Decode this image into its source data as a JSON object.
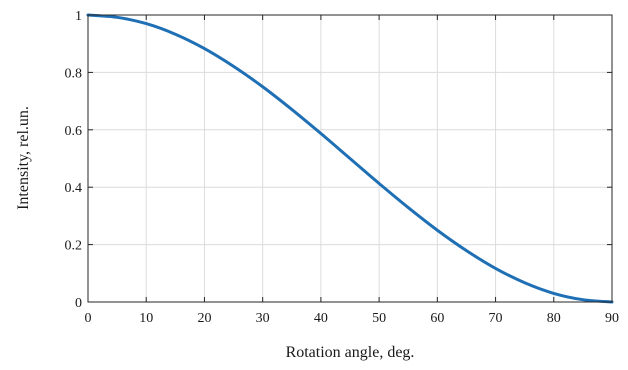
{
  "chart_data": {
    "type": "line",
    "title": "",
    "xlabel": "Rotation angle, deg.",
    "ylabel": "Intensity, rel.un.",
    "xlim": [
      0,
      90
    ],
    "ylim": [
      0,
      1
    ],
    "x_ticks": [
      "0",
      "10",
      "20",
      "30",
      "40",
      "50",
      "60",
      "70",
      "80",
      "90"
    ],
    "y_ticks": [
      "0",
      "0.2",
      "0.4",
      "0.6",
      "0.8",
      "1"
    ],
    "grid": true,
    "series": [
      {
        "color": "#1f6fb5",
        "x": [
          0,
          5,
          10,
          15,
          20,
          25,
          30,
          35,
          40,
          45,
          50,
          55,
          60,
          65,
          70,
          75,
          80,
          85,
          90
        ],
        "y": [
          1.0,
          0.992,
          0.97,
          0.933,
          0.883,
          0.821,
          0.75,
          0.671,
          0.587,
          0.5,
          0.413,
          0.329,
          0.25,
          0.179,
          0.117,
          0.067,
          0.03,
          0.008,
          0.0
        ]
      }
    ]
  }
}
